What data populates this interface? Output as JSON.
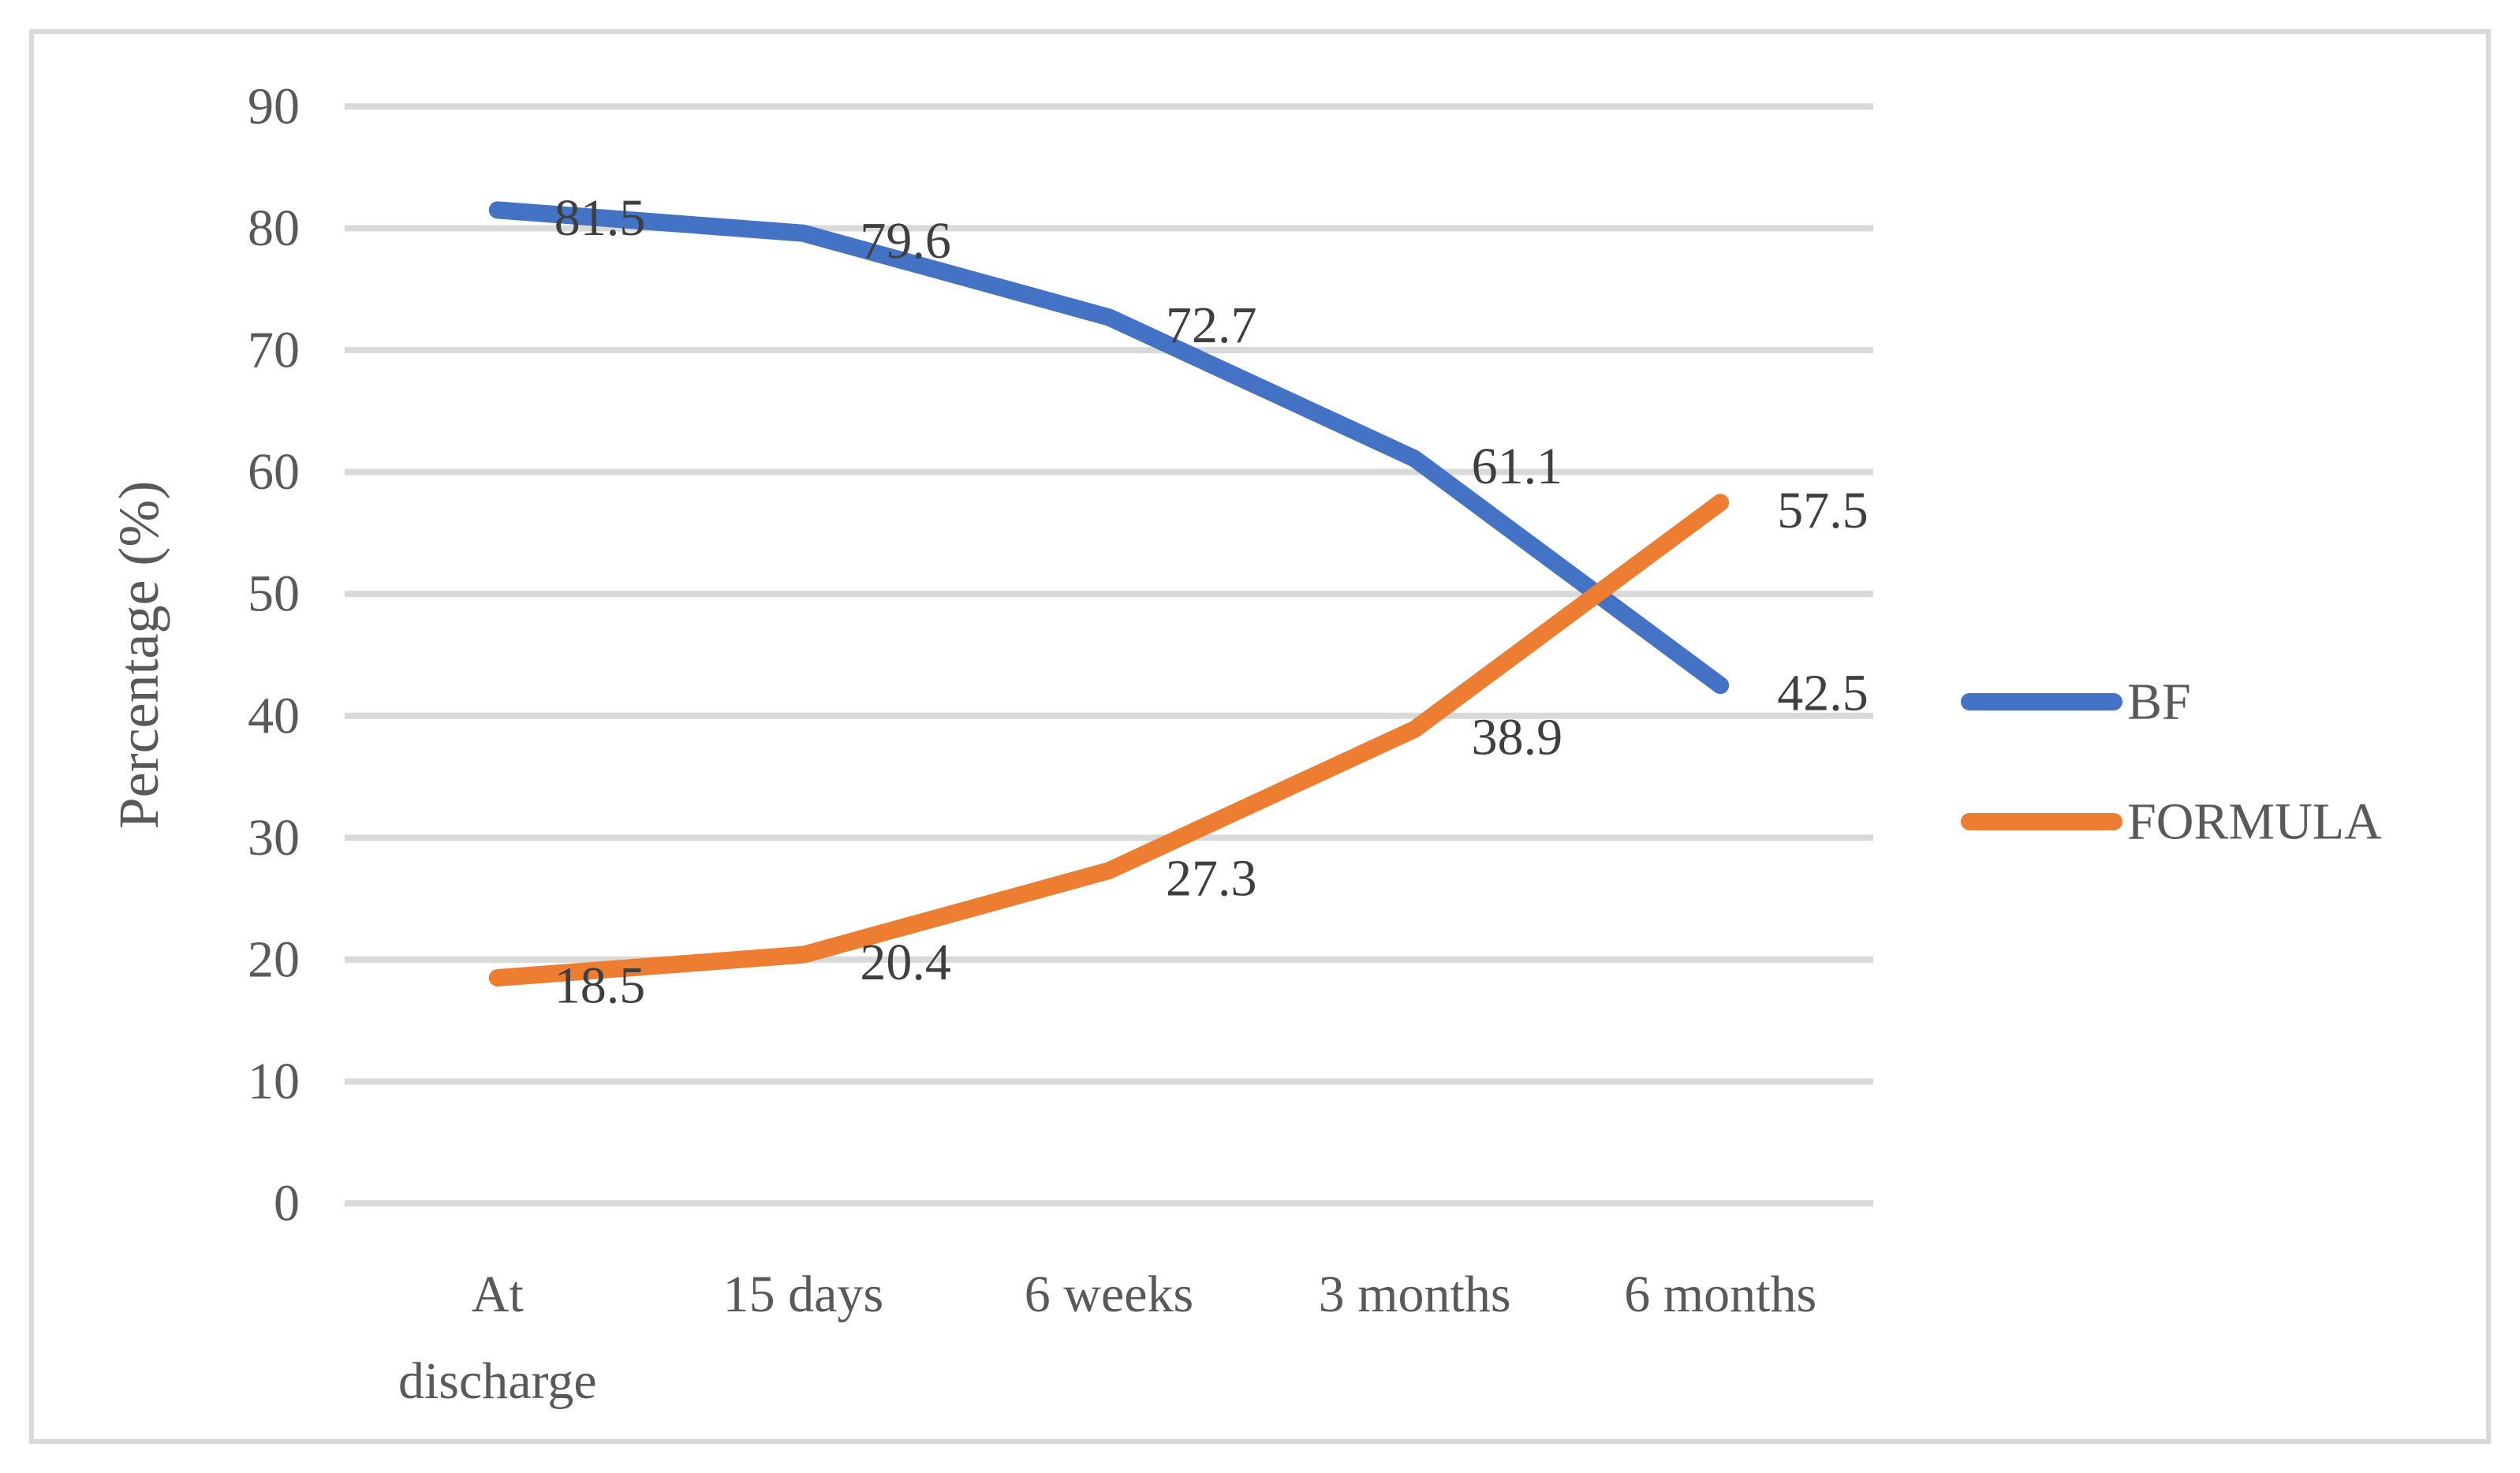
{
  "chart_data": {
    "type": "line",
    "title": "",
    "categories": [
      "At discharge",
      "15 days",
      "6 weeks",
      "3 months",
      "6 months"
    ],
    "series": [
      {
        "name": "BF",
        "color": "#4472C4",
        "values": [
          81.5,
          79.6,
          72.7,
          61.1,
          42.5
        ]
      },
      {
        "name": "FORMULA",
        "color": "#ED7D31",
        "values": [
          18.5,
          20.4,
          27.3,
          38.9,
          57.5
        ]
      }
    ],
    "data_labels_shown": true,
    "data_label_texts": [
      [
        "81.5",
        "79.6",
        "72.7",
        "61.1",
        "42.5"
      ],
      [
        "18.5",
        "20.4",
        "27.3",
        "38.9",
        "57.5"
      ]
    ],
    "xlabel": "",
    "ylabel": "Percentage (%)",
    "ylim": [
      0,
      90
    ],
    "ytick_step": 10,
    "yticks": [
      "0",
      "10",
      "20",
      "30",
      "40",
      "50",
      "60",
      "70",
      "80",
      "90"
    ],
    "grid": true,
    "legend": {
      "position": "right",
      "entries": [
        "BF",
        "FORMULA"
      ]
    },
    "colors": {
      "grid": "#D9D9D9",
      "axis_text": "#595959",
      "data_label_text": "#3F3F3F",
      "frame_border": "#D9D9D9",
      "background": "#FFFFFF"
    }
  }
}
